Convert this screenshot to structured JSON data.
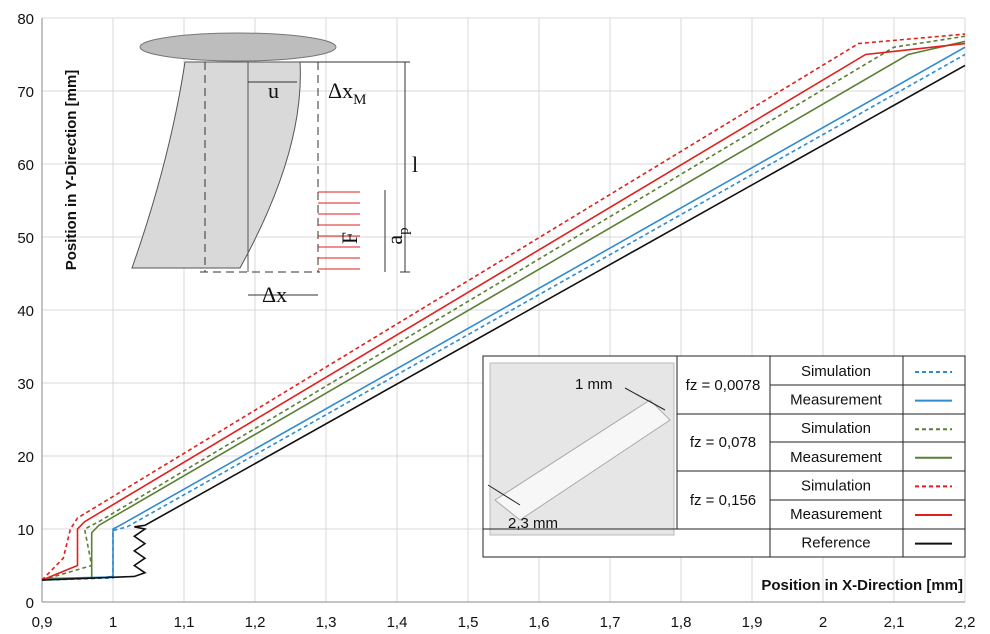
{
  "chart_data": {
    "type": "line",
    "x_label": "Position in X-Direction [mm]",
    "y_label": "Position in Y-Direction [mm]",
    "xlim": [
      0.9,
      2.2
    ],
    "xticks": [
      {
        "value": 0.9,
        "label": "0,9"
      },
      1,
      {
        "value": 1.1,
        "label": "1,1"
      },
      {
        "value": 1.2,
        "label": "1,2"
      },
      {
        "value": 1.3,
        "label": "1,3"
      },
      {
        "value": 1.4,
        "label": "1,4"
      },
      {
        "value": 1.5,
        "label": "1,5"
      },
      {
        "value": 1.6,
        "label": "1,6"
      },
      {
        "value": 1.7,
        "label": "1,7"
      },
      {
        "value": 1.8,
        "label": "1,8"
      },
      {
        "value": 1.9,
        "label": "1,9"
      },
      2,
      {
        "value": 2.1,
        "label": "2,1"
      },
      {
        "value": 2.2,
        "label": "2,2"
      }
    ],
    "ylim": [
      0,
      80
    ],
    "yticks": [
      0,
      10,
      20,
      30,
      40,
      50,
      60,
      70,
      80
    ],
    "grid": true,
    "legend_groups": [
      "fz = 0,0078",
      "fz = 0,078",
      "fz = 0,156"
    ],
    "series": [
      {
        "name": "Simulation",
        "color": "#2f8bd0",
        "dash": true,
        "x": [
          0.9,
          1.0,
          1.0,
          1.02,
          2.2
        ],
        "values": [
          3.0,
          3.3,
          9.8,
          10.3,
          75
        ]
      },
      {
        "name": "Measurement",
        "color": "#2f8bd0",
        "dash": false,
        "x": [
          0.9,
          0.99,
          1.0,
          1.0,
          1.01,
          2.2
        ],
        "values": [
          3.2,
          3.4,
          3.5,
          10,
          10.5,
          76
        ]
      },
      {
        "name": "Simulation",
        "color": "#5b7f35",
        "dash": true,
        "x": [
          0.9,
          0.97,
          0.96,
          0.98,
          2.1,
          2.2
        ],
        "values": [
          3,
          5,
          10,
          11,
          76,
          77.5
        ]
      },
      {
        "name": "Measurement",
        "color": "#5b7f35",
        "dash": false,
        "x": [
          0.9,
          0.97,
          0.97,
          0.98,
          2.12,
          2.2
        ],
        "values": [
          3.1,
          3.3,
          9.5,
          10.5,
          75,
          76.8
        ]
      },
      {
        "name": "Simulation",
        "color": "#e0201c",
        "dash": true,
        "x": [
          0.9,
          0.93,
          0.94,
          0.95,
          2.05,
          2.2
        ],
        "values": [
          3,
          6,
          10,
          11.5,
          76.5,
          77.8
        ]
      },
      {
        "name": "Measurement",
        "color": "#e0201c",
        "dash": false,
        "x": [
          0.9,
          0.95,
          0.95,
          0.96,
          2.06,
          2.2
        ],
        "values": [
          3,
          5,
          10,
          11,
          75,
          76.5
        ]
      },
      {
        "name": "Reference",
        "color": "#111111",
        "dash": false,
        "x": [
          0.9,
          1.03,
          1.045,
          1.03,
          1.045,
          1.03,
          1.045,
          1.03,
          1.045,
          1.03,
          1.045,
          2.2
        ],
        "values": [
          3,
          3.5,
          4,
          5,
          6,
          7,
          8,
          9,
          10,
          10.3,
          10.5,
          73.5
        ]
      }
    ],
    "annotations": [
      "u",
      "Δx",
      "M",
      "l",
      "F",
      "a",
      "p",
      "Δx",
      "1 mm",
      "2,3 mm"
    ]
  }
}
